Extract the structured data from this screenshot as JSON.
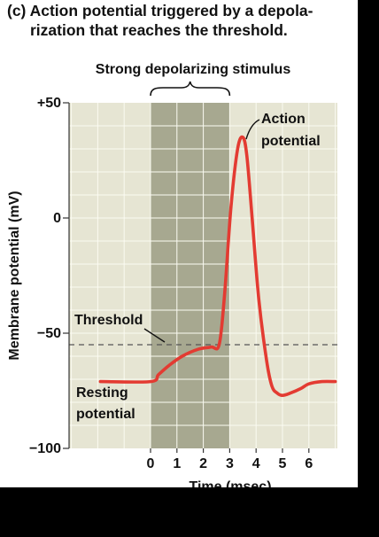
{
  "figure": {
    "title_line1": "(c) Action potential triggered by a depola-",
    "title_line2": "rization that reaches the threshold."
  },
  "chart_data": {
    "type": "line",
    "xlabel": "Time (msec)",
    "ylabel": "Membrane potential (mV)",
    "x_ticks": [
      0,
      1,
      2,
      3,
      4,
      5,
      6
    ],
    "y_ticks": [
      50,
      0,
      -50,
      -100
    ],
    "y_tick_labels": [
      "+50",
      "0",
      "−50",
      "−100"
    ],
    "xlim": [
      0,
      6
    ],
    "ylim": [
      -100,
      50
    ],
    "grid": true,
    "threshold": -55,
    "threshold_label": "Threshold",
    "stimulus_window": [
      0,
      3
    ],
    "stimulus_label": "Strong depolarizing stimulus",
    "annotations": {
      "peak": [
        "Action",
        "potential"
      ],
      "resting": [
        "Resting",
        "potential"
      ]
    },
    "series": [
      {
        "color": "#e33b32",
        "x": [
          -1.9,
          0,
          0.3,
          0.7,
          1.2,
          1.8,
          2.3,
          2.6,
          2.8,
          3.05,
          3.3,
          3.5,
          3.65,
          3.85,
          4.1,
          4.4,
          4.6,
          4.8,
          5.0,
          5.3,
          5.7,
          6.0,
          6.5,
          7.0
        ],
        "y": [
          -71,
          -71,
          -68,
          -64,
          -60,
          -57,
          -56,
          -55,
          -34,
          5,
          30,
          35,
          27,
          0,
          -35,
          -62,
          -73,
          -76,
          -77,
          -76,
          -74,
          -72,
          -71,
          -71
        ]
      }
    ]
  }
}
